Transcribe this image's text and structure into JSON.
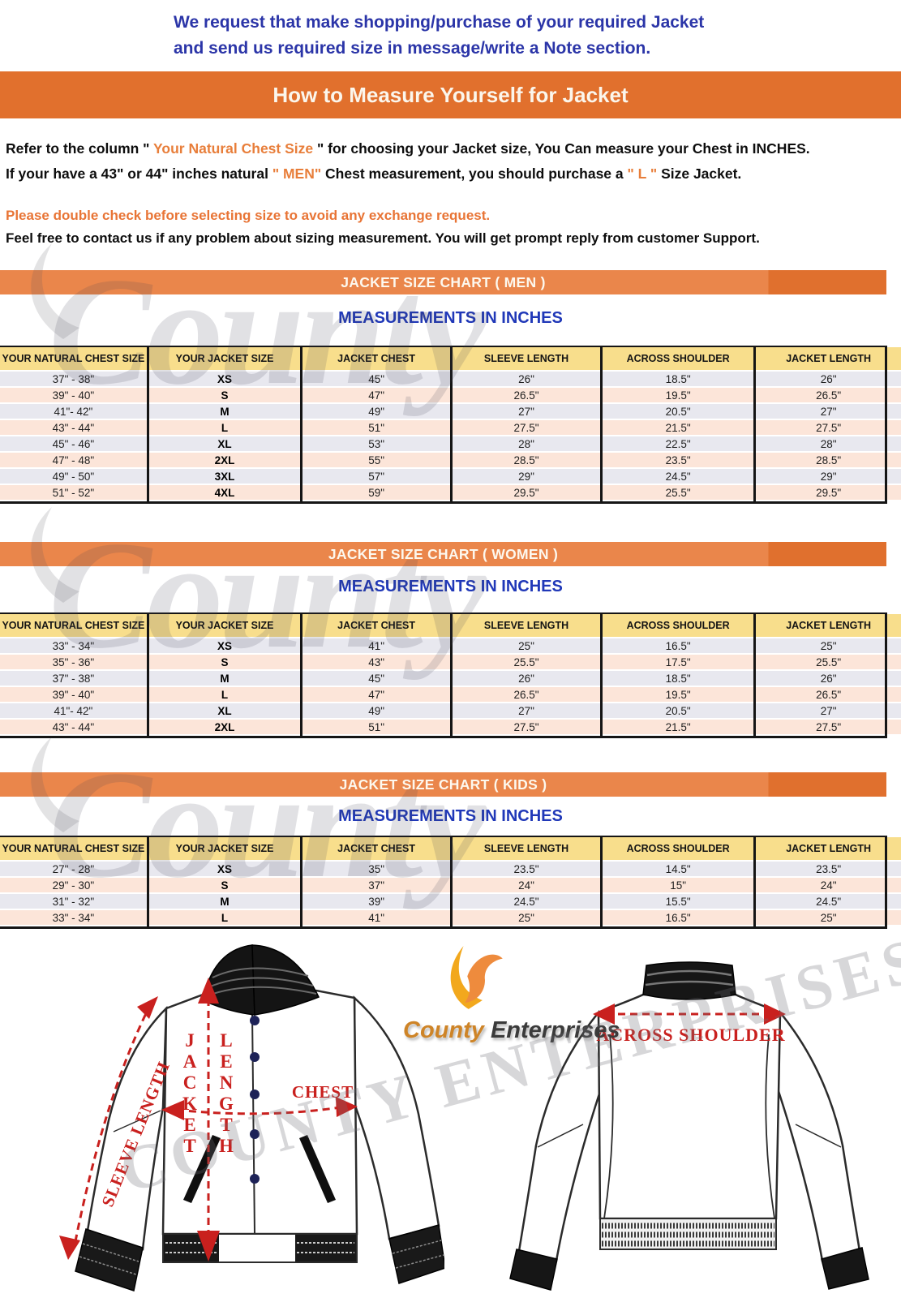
{
  "intro": {
    "line1": "We request that make shopping/purchase of your required Jacket",
    "line2": "and send us required size in message/write a Note section."
  },
  "main_banner": {
    "title": "How to Measure Yourself for Jacket"
  },
  "instructions": {
    "l1_pre": "Refer to the column \" ",
    "l1_highlight": "Your Natural Chest Size",
    "l1_post": " \" for choosing your Jacket size, You Can measure your Chest in INCHES.",
    "l2_pre": "If your have a 43\" or 44\"  inches natural ",
    "l2_highlight1": "\" MEN\"",
    "l2_mid": " Chest measurement, you should purchase a ",
    "l2_highlight2": "\" L \"",
    "l2_post": " Size Jacket."
  },
  "notes": {
    "orange": "Please double check before selecting size to avoid any exchange request.",
    "black": "Feel free to contact us if any problem about sizing measurement. You will get prompt reply from customer Support."
  },
  "charts": [
    {
      "banner": "JACKET SIZE CHART ( MEN )",
      "subtitle": "MEASUREMENTS IN INCHES",
      "columns": [
        "YOUR NATURAL CHEST SIZE",
        "YOUR JACKET SIZE",
        "JACKET CHEST",
        "SLEEVE LENGTH",
        "ACROSS SHOULDER",
        "JACKET LENGTH"
      ],
      "rows": [
        [
          "37\" - 38\"",
          "XS",
          "45\"",
          "26\"",
          "18.5\"",
          "26\""
        ],
        [
          "39\" - 40\"",
          "S",
          "47\"",
          "26.5\"",
          "19.5\"",
          "26.5\""
        ],
        [
          "41\"- 42\"",
          "M",
          "49\"",
          "27\"",
          "20.5\"",
          "27\""
        ],
        [
          "43\" - 44\"",
          "L",
          "51\"",
          "27.5\"",
          "21.5\"",
          "27.5\""
        ],
        [
          "45\" - 46\"",
          "XL",
          "53\"",
          "28\"",
          "22.5\"",
          "28\""
        ],
        [
          "47\" - 48\"",
          "2XL",
          "55\"",
          "28.5\"",
          "23.5\"",
          "28.5\""
        ],
        [
          "49\" - 50\"",
          "3XL",
          "57\"",
          "29\"",
          "24.5\"",
          "29\""
        ],
        [
          "51\" - 52\"",
          "4XL",
          "59\"",
          "29.5\"",
          "25.5\"",
          "29.5\""
        ]
      ]
    },
    {
      "banner": "JACKET SIZE CHART ( WOMEN )",
      "subtitle": "MEASUREMENTS IN INCHES",
      "columns": [
        "YOUR NATURAL CHEST SIZE",
        "YOUR JACKET SIZE",
        "JACKET CHEST",
        "SLEEVE LENGTH",
        "ACROSS SHOULDER",
        "JACKET LENGTH"
      ],
      "rows": [
        [
          "33\" - 34\"",
          "XS",
          "41\"",
          "25\"",
          "16.5\"",
          "25\""
        ],
        [
          "35\" - 36\"",
          "S",
          "43\"",
          "25.5\"",
          "17.5\"",
          "25.5\""
        ],
        [
          "37\" - 38\"",
          "M",
          "45\"",
          "26\"",
          "18.5\"",
          "26\""
        ],
        [
          "39\" - 40\"",
          "L",
          "47\"",
          "26.5\"",
          "19.5\"",
          "26.5\""
        ],
        [
          "41\"- 42\"",
          "XL",
          "49\"",
          "27\"",
          "20.5\"",
          "27\""
        ],
        [
          "43\" - 44\"",
          "2XL",
          "51\"",
          "27.5\"",
          "21.5\"",
          "27.5\""
        ]
      ]
    },
    {
      "banner": "JACKET SIZE CHART ( KIDS )",
      "subtitle": "MEASUREMENTS IN INCHES",
      "columns": [
        "YOUR NATURAL CHEST SIZE",
        "YOUR JACKET SIZE",
        "JACKET CHEST",
        "SLEEVE LENGTH",
        "ACROSS SHOULDER",
        "JACKET LENGTH"
      ],
      "rows": [
        [
          "27\" - 28\"",
          "XS",
          "35\"",
          "23.5\"",
          "14.5\"",
          "23.5\""
        ],
        [
          "29\" - 30\"",
          "S",
          "37\"",
          "24\"",
          "15\"",
          "24\""
        ],
        [
          "31\" - 32\"",
          "M",
          "39\"",
          "24.5\"",
          "15.5\"",
          "24.5\""
        ],
        [
          "33\" - 34\"",
          "L",
          "41\"",
          "25\"",
          "16.5\"",
          "25\""
        ]
      ]
    }
  ],
  "diagram": {
    "front": {
      "sleeve_label": "SLEEVE LENGTH",
      "jacket_word": "JACKET",
      "length_word": "LENGTH",
      "chest_label": "CHEST"
    },
    "back": {
      "shoulder_label": "ACROSS SHOULDER"
    },
    "logo": {
      "name_orange": "County ",
      "name_dark": "Enterprises"
    }
  },
  "watermarks": {
    "word": "County",
    "banner_text": "COUNTY ENTERPRISES"
  },
  "colors": {
    "banner_main": "#E1702D",
    "banner_light": "#EA864B",
    "banner_dark": "#E0702E",
    "header_yellow": "#F8DE8C",
    "row_gray": "#E8E8EF",
    "row_pink": "#FCE5D9",
    "intro_blue": "#2B35A8",
    "subtitle_blue": "#2038B8",
    "orange_text": "#E87E3A",
    "red_label": "#C9201E",
    "button_navy": "#1D2257"
  }
}
